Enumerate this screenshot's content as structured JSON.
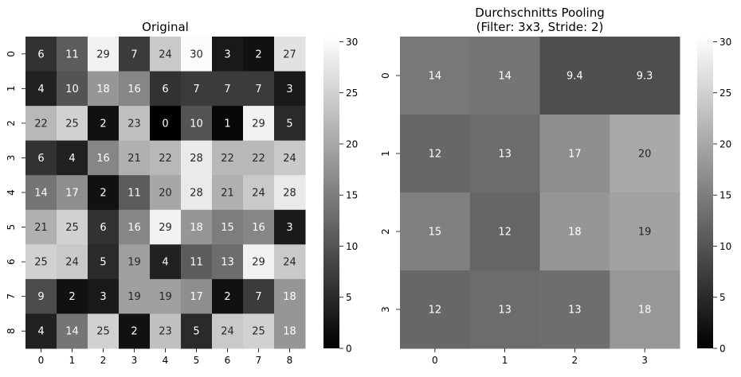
{
  "chart_data": [
    {
      "type": "heatmap",
      "title": "Original",
      "x_tick_labels": [
        "0",
        "1",
        "2",
        "3",
        "4",
        "5",
        "6",
        "7",
        "8"
      ],
      "y_tick_labels": [
        "0",
        "1",
        "2",
        "3",
        "4",
        "5",
        "6",
        "7",
        "8"
      ],
      "values": [
        [
          6,
          11,
          29,
          7,
          24,
          30,
          3,
          2,
          27
        ],
        [
          4,
          10,
          18,
          16,
          6,
          7,
          7,
          7,
          3
        ],
        [
          22,
          25,
          2,
          23,
          0,
          10,
          1,
          29,
          5
        ],
        [
          6,
          4,
          16,
          21,
          22,
          28,
          22,
          22,
          24
        ],
        [
          14,
          17,
          2,
          11,
          20,
          28,
          21,
          24,
          28
        ],
        [
          21,
          25,
          6,
          16,
          29,
          18,
          15,
          16,
          3
        ],
        [
          25,
          24,
          5,
          19,
          4,
          11,
          13,
          29,
          24
        ],
        [
          9,
          2,
          3,
          19,
          19,
          17,
          2,
          7,
          18
        ],
        [
          4,
          14,
          25,
          2,
          23,
          5,
          24,
          25,
          18
        ]
      ],
      "labels": [
        [
          "6",
          "11",
          "29",
          "7",
          "24",
          "30",
          "3",
          "2",
          "27"
        ],
        [
          "4",
          "10",
          "18",
          "16",
          "6",
          "7",
          "7",
          "7",
          "3"
        ],
        [
          "22",
          "25",
          "2",
          "23",
          "0",
          "10",
          "1",
          "29",
          "5"
        ],
        [
          "6",
          "4",
          "16",
          "21",
          "22",
          "28",
          "22",
          "22",
          "24"
        ],
        [
          "14",
          "17",
          "2",
          "11",
          "20",
          "28",
          "21",
          "24",
          "28"
        ],
        [
          "21",
          "25",
          "6",
          "16",
          "29",
          "18",
          "15",
          "16",
          "3"
        ],
        [
          "25",
          "24",
          "5",
          "19",
          "4",
          "11",
          "13",
          "29",
          "24"
        ],
        [
          "9",
          "2",
          "3",
          "19",
          "19",
          "17",
          "2",
          "7",
          "18"
        ],
        [
          "4",
          "14",
          "25",
          "2",
          "23",
          "5",
          "24",
          "25",
          "18"
        ]
      ],
      "colormap": "gray",
      "vmin": 0,
      "vmax": 30.5,
      "colorbar_ticks": [
        0,
        5,
        10,
        15,
        20,
        25,
        30
      ],
      "colorbar_tick_labels": [
        "0",
        "5",
        "10",
        "15",
        "20",
        "25",
        "30"
      ]
    },
    {
      "type": "heatmap",
      "title": "Durchschnitts Pooling",
      "subtitle": "(Filter: 3x3, Stride: 2)",
      "x_tick_labels": [
        "0",
        "1",
        "2",
        "3"
      ],
      "y_tick_labels": [
        "0",
        "1",
        "2",
        "3"
      ],
      "values": [
        [
          14.3,
          14.0,
          9.4,
          9.3
        ],
        [
          12.3,
          12.9,
          17.0,
          20.2
        ],
        [
          15.2,
          12.1,
          18.0,
          19.4
        ],
        [
          12.3,
          12.9,
          13.2,
          18.1
        ]
      ],
      "labels": [
        [
          "14",
          "14",
          "9.4",
          "9.3"
        ],
        [
          "12",
          "13",
          "17",
          "20"
        ],
        [
          "15",
          "12",
          "18",
          "19"
        ],
        [
          "12",
          "13",
          "13",
          "18"
        ]
      ],
      "colormap": "gray",
      "vmin": 0,
      "vmax": 30.5,
      "colorbar_ticks": [
        0,
        5,
        10,
        15,
        20,
        25,
        30
      ],
      "colorbar_tick_labels": [
        "0",
        "5",
        "10",
        "15",
        "20",
        "25",
        "30"
      ]
    }
  ]
}
